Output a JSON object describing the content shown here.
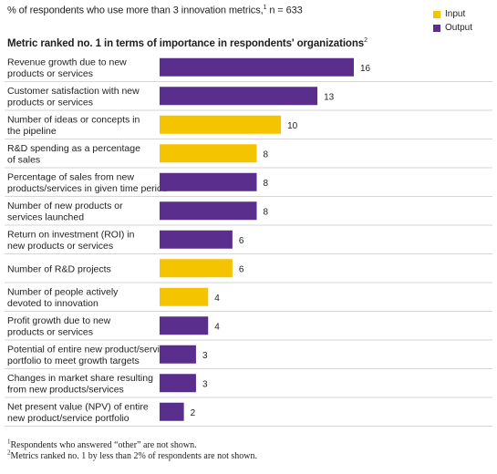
{
  "header": {
    "subtitle": "% of respondents who use more than 3 innovation metrics,",
    "subtitle_mark": "1",
    "subtitle_n": " n = 633"
  },
  "legend": [
    {
      "label": "Input",
      "color": "#F5C400"
    },
    {
      "label": "Output",
      "color": "#5A2E8C"
    }
  ],
  "colors": {
    "input": "#F5C400",
    "output": "#5A2E8C",
    "divider": "#d6d6d6"
  },
  "chart_data": {
    "type": "bar",
    "orientation": "horizontal",
    "title": "Metric ranked no. 1 in terms of importance in respondents' organizations",
    "title_mark": "2",
    "xlabel": "",
    "ylabel": "",
    "xlim": [
      0,
      16
    ],
    "grid": false,
    "legend_position": "top-right",
    "categories": [
      [
        "Revenue growth due to new",
        "products or services"
      ],
      [
        "Customer satisfaction with new",
        "products or services"
      ],
      [
        "Number of ideas or concepts in",
        "the pipeline"
      ],
      [
        "R&D spending as a percentage",
        "of sales"
      ],
      [
        "Percentage of sales from new",
        "products/services in given time period"
      ],
      [
        "Number of new products or",
        "services launched"
      ],
      [
        "Return on investment (ROI) in",
        "new products or services"
      ],
      [
        "Number of R&D projects"
      ],
      [
        "Number of people actively",
        "devoted to innovation"
      ],
      [
        "Profit growth due to new",
        "products or services"
      ],
      [
        "Potential of entire new product/service",
        "portfolio to meet growth targets"
      ],
      [
        "Changes in market share resulting",
        "from new products/services"
      ],
      [
        "Net present value (NPV) of entire",
        "new product/service portfolio"
      ]
    ],
    "values": [
      16,
      13,
      10,
      8,
      8,
      8,
      6,
      6,
      4,
      4,
      3,
      3,
      2
    ],
    "types": [
      "Output",
      "Output",
      "Input",
      "Input",
      "Output",
      "Output",
      "Output",
      "Input",
      "Input",
      "Output",
      "Output",
      "Output",
      "Output"
    ]
  },
  "footnotes": [
    {
      "mark": "1",
      "text": "Respondents who answered “other” are not shown."
    },
    {
      "mark": "2",
      "text": "Metrics ranked no. 1 by less than 2% of respondents are not shown."
    }
  ]
}
